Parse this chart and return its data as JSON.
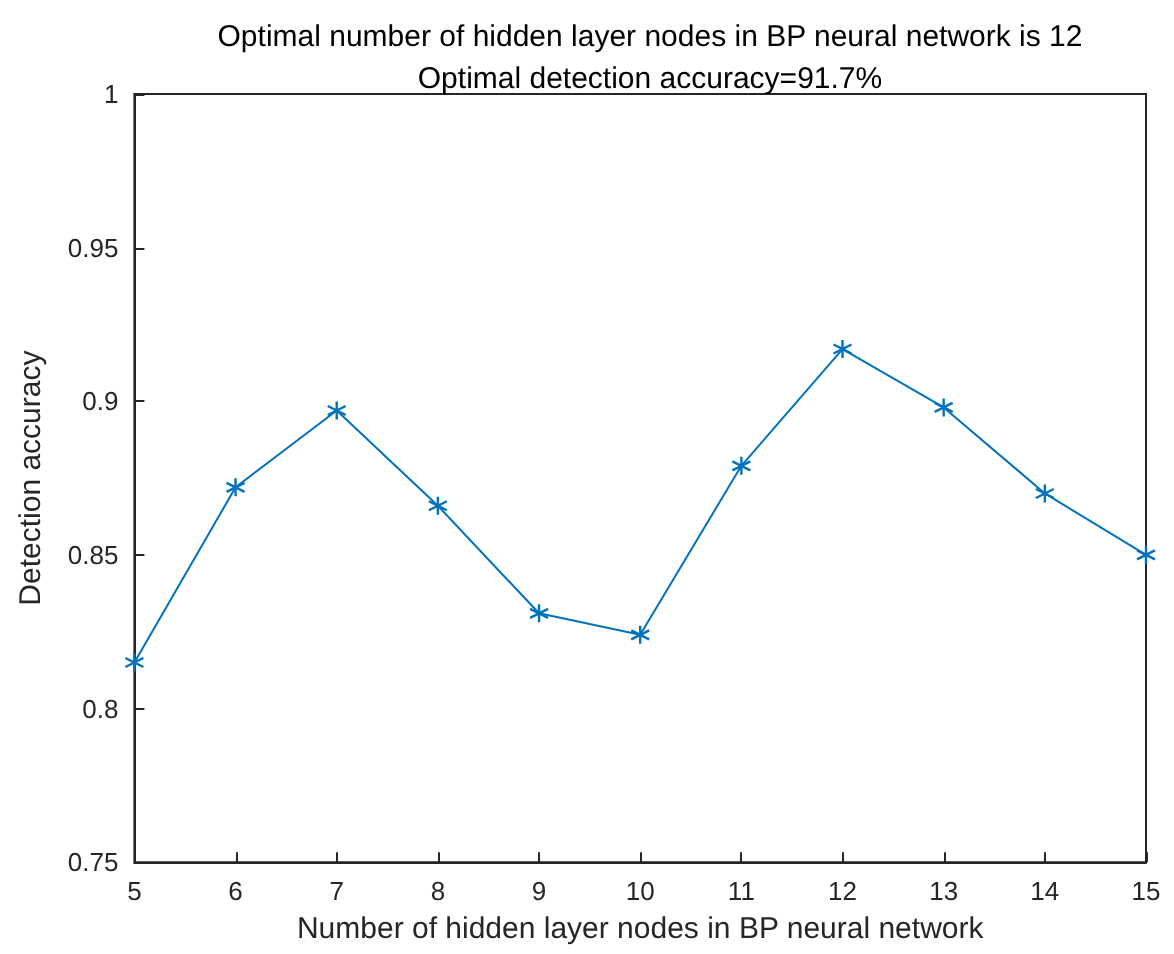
{
  "chart_data": {
    "type": "line",
    "title": "Optimal number of hidden layer nodes in BP neural network is 12",
    "subtitle": "Optimal detection accuracy=91.7%",
    "xlabel": "Number of hidden layer nodes in BP neural network",
    "ylabel": "Detection accuracy",
    "x": [
      5,
      6,
      7,
      8,
      9,
      10,
      11,
      12,
      13,
      14,
      15
    ],
    "series": [
      {
        "color": "#0072bd",
        "values": [
          0.815,
          0.872,
          0.897,
          0.866,
          0.831,
          0.824,
          0.879,
          0.917,
          0.898,
          0.87,
          0.85
        ]
      }
    ],
    "xlim": [
      5,
      15
    ],
    "xticks": [
      5,
      6,
      7,
      8,
      9,
      10,
      11,
      12,
      13,
      14,
      15
    ],
    "ylim": [
      0.75,
      1
    ],
    "yticks": [
      0.75,
      0.8,
      0.85,
      0.9,
      0.95,
      1
    ],
    "grid": false,
    "marker": "cross",
    "line_style": "solid"
  }
}
